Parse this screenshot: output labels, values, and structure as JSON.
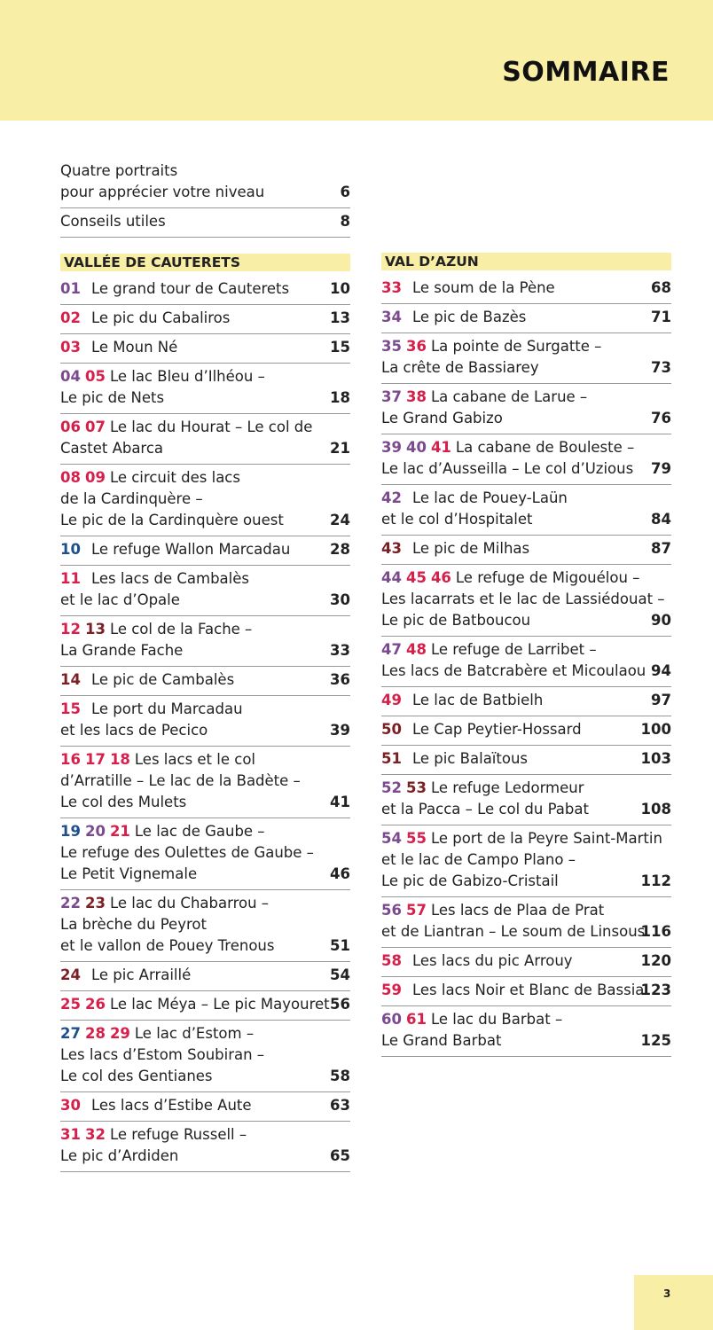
{
  "header": {
    "title": "SOMMAIRE"
  },
  "intro": [
    {
      "lines": [
        "Quatre portraits",
        "pour apprécier votre niveau"
      ],
      "page": 6
    },
    {
      "lines": [
        "Conseils utiles"
      ],
      "page": 8
    }
  ],
  "sections": [
    {
      "title": "VALLÉE DE CAUTERETS",
      "entries": [
        {
          "nums": [
            {
              "n": "01",
              "color": "#7b4a8e"
            }
          ],
          "lines": [
            "Le grand tour de Cauterets"
          ],
          "page": 10
        },
        {
          "nums": [
            {
              "n": "02",
              "color": "#d61f4b"
            }
          ],
          "lines": [
            "Le pic du Cabaliros"
          ],
          "page": 13
        },
        {
          "nums": [
            {
              "n": "03",
              "color": "#d61f4b"
            }
          ],
          "lines": [
            "Le Moun Né"
          ],
          "page": 15
        },
        {
          "nums": [
            {
              "n": "04",
              "color": "#7b4a8e"
            },
            {
              "n": "05",
              "color": "#d61f4b"
            }
          ],
          "lines": [
            "Le lac Bleu d’Ilhéou –",
            "Le pic de Nets"
          ],
          "page": 18
        },
        {
          "nums": [
            {
              "n": "06",
              "color": "#d61f4b"
            },
            {
              "n": "07",
              "color": "#d61f4b"
            }
          ],
          "lines": [
            "Le lac du Hourat – Le col de",
            "Castet Abarca"
          ],
          "page": 21
        },
        {
          "nums": [
            {
              "n": "08",
              "color": "#d61f4b"
            },
            {
              "n": "09",
              "color": "#d61f4b"
            }
          ],
          "lines": [
            "Le circuit des lacs",
            "de la Cardinquère –",
            "Le pic de la Cardinquère ouest"
          ],
          "page": 24
        },
        {
          "nums": [
            {
              "n": "10",
              "color": "#1d4f8c"
            }
          ],
          "lines": [
            "Le refuge Wallon Marcadau"
          ],
          "page": 28
        },
        {
          "nums": [
            {
              "n": "11",
              "color": "#d61f4b"
            }
          ],
          "lines": [
            "Les lacs de Cambalès",
            "et le lac d’Opale"
          ],
          "page": 30
        },
        {
          "nums": [
            {
              "n": "12",
              "color": "#d61f4b"
            },
            {
              "n": "13",
              "color": "#7a1f24"
            }
          ],
          "lines": [
            "Le col de la Fache –",
            "La Grande Fache"
          ],
          "page": 33
        },
        {
          "nums": [
            {
              "n": "14",
              "color": "#7a1f24"
            }
          ],
          "lines": [
            "Le pic de Cambalès"
          ],
          "page": 36
        },
        {
          "nums": [
            {
              "n": "15",
              "color": "#d61f4b"
            }
          ],
          "lines": [
            "Le port du Marcadau",
            "et les lacs de Pecico"
          ],
          "page": 39
        },
        {
          "nums": [
            {
              "n": "16",
              "color": "#d61f4b"
            },
            {
              "n": "17",
              "color": "#d61f4b"
            },
            {
              "n": "18",
              "color": "#d61f4b"
            }
          ],
          "lines": [
            "Les lacs et le col",
            "d’Arratille – Le lac de la Badète –",
            "Le col des Mulets"
          ],
          "page": 41
        },
        {
          "nums": [
            {
              "n": "19",
              "color": "#1d4f8c"
            },
            {
              "n": "20",
              "color": "#7b4a8e"
            },
            {
              "n": "21",
              "color": "#d61f4b"
            }
          ],
          "lines": [
            "Le lac de Gaube –",
            "Le refuge des Oulettes de Gaube –",
            "Le Petit Vignemale"
          ],
          "page": 46
        },
        {
          "nums": [
            {
              "n": "22",
              "color": "#7b4a8e"
            },
            {
              "n": "23",
              "color": "#7a1f24"
            }
          ],
          "lines": [
            "Le lac du Chabarrou –",
            "La brèche du Peyrot",
            "et le vallon de Pouey Trenous"
          ],
          "page": 51
        },
        {
          "nums": [
            {
              "n": "24",
              "color": "#7a1f24"
            }
          ],
          "lines": [
            "Le pic Arraillé"
          ],
          "page": 54
        },
        {
          "nums": [
            {
              "n": "25",
              "color": "#d61f4b"
            },
            {
              "n": "26",
              "color": "#d61f4b"
            }
          ],
          "lines": [
            "Le lac Méya – Le pic Mayouret"
          ],
          "page": 56
        },
        {
          "nums": [
            {
              "n": "27",
              "color": "#1d4f8c"
            },
            {
              "n": "28",
              "color": "#d61f4b"
            },
            {
              "n": "29",
              "color": "#d61f4b"
            }
          ],
          "lines": [
            "Le lac d’Estom –",
            "Les lacs d’Estom Soubiran –",
            "Le col des Gentianes"
          ],
          "page": 58
        },
        {
          "nums": [
            {
              "n": "30",
              "color": "#d61f4b"
            }
          ],
          "lines": [
            "Les lacs d’Estibe Aute"
          ],
          "page": 63
        },
        {
          "nums": [
            {
              "n": "31",
              "color": "#d61f4b"
            },
            {
              "n": "32",
              "color": "#d61f4b"
            }
          ],
          "lines": [
            "Le refuge Russell –",
            "Le pic d’Ardiden"
          ],
          "page": 65
        }
      ]
    },
    {
      "title": "VAL D’AZUN",
      "entries": [
        {
          "nums": [
            {
              "n": "33",
              "color": "#d61f4b"
            }
          ],
          "lines": [
            "Le soum de la Pène"
          ],
          "page": 68
        },
        {
          "nums": [
            {
              "n": "34",
              "color": "#7b4a8e"
            }
          ],
          "lines": [
            "Le pic de Bazès"
          ],
          "page": 71
        },
        {
          "nums": [
            {
              "n": "35",
              "color": "#7b4a8e"
            },
            {
              "n": "36",
              "color": "#d61f4b"
            }
          ],
          "lines": [
            "La pointe de Surgatte –",
            "La crête de Bassiarey"
          ],
          "page": 73
        },
        {
          "nums": [
            {
              "n": "37",
              "color": "#7b4a8e"
            },
            {
              "n": "38",
              "color": "#d61f4b"
            }
          ],
          "lines": [
            "La cabane de Larue –",
            "Le Grand Gabizo"
          ],
          "page": 76
        },
        {
          "nums": [
            {
              "n": "39",
              "color": "#7b4a8e"
            },
            {
              "n": "40",
              "color": "#7b4a8e"
            },
            {
              "n": "41",
              "color": "#d61f4b"
            }
          ],
          "lines": [
            "La cabane de Bouleste –",
            "Le lac d’Ausseilla – Le col d’Uzious"
          ],
          "page": 79
        },
        {
          "nums": [
            {
              "n": "42",
              "color": "#7b4a8e"
            }
          ],
          "lines": [
            "Le lac de Pouey-Laün",
            "et le col d’Hospitalet"
          ],
          "page": 84
        },
        {
          "nums": [
            {
              "n": "43",
              "color": "#7a1f24"
            }
          ],
          "lines": [
            "Le pic de Milhas"
          ],
          "page": 87
        },
        {
          "nums": [
            {
              "n": "44",
              "color": "#7b4a8e"
            },
            {
              "n": "45",
              "color": "#d61f4b"
            },
            {
              "n": "46",
              "color": "#d61f4b"
            }
          ],
          "lines": [
            "Le refuge de Migouélou –",
            "Les lacarrats et le lac de Lassiédouat –",
            "Le pic de Batboucou"
          ],
          "page": 90
        },
        {
          "nums": [
            {
              "n": "47",
              "color": "#7b4a8e"
            },
            {
              "n": "48",
              "color": "#d61f4b"
            }
          ],
          "lines": [
            "Le refuge de Larribet –",
            "Les lacs de Batcrabère et Micoulaou"
          ],
          "page": 94
        },
        {
          "nums": [
            {
              "n": "49",
              "color": "#d61f4b"
            }
          ],
          "lines": [
            "Le lac de Batbielh"
          ],
          "page": 97
        },
        {
          "nums": [
            {
              "n": "50",
              "color": "#7a1f24"
            }
          ],
          "lines": [
            "Le Cap Peytier-Hossard"
          ],
          "page": 100
        },
        {
          "nums": [
            {
              "n": "51",
              "color": "#7a1f24"
            }
          ],
          "lines": [
            "Le pic Balaïtous"
          ],
          "page": 103
        },
        {
          "nums": [
            {
              "n": "52",
              "color": "#7b4a8e"
            },
            {
              "n": "53",
              "color": "#7a1f24"
            }
          ],
          "lines": [
            "Le refuge Ledormeur",
            "et la Pacca – Le col du Pabat"
          ],
          "page": 108
        },
        {
          "nums": [
            {
              "n": "54",
              "color": "#7b4a8e"
            },
            {
              "n": "55",
              "color": "#d61f4b"
            }
          ],
          "lines": [
            "Le port de la Peyre Saint-Martin",
            "et le lac de Campo Plano –",
            "Le pic de Gabizo-Cristail"
          ],
          "page": 112
        },
        {
          "nums": [
            {
              "n": "56",
              "color": "#7b4a8e"
            },
            {
              "n": "57",
              "color": "#d61f4b"
            }
          ],
          "lines": [
            "Les lacs de Plaa de Prat",
            "et de Liantran – Le soum de Linsous"
          ],
          "page": 116
        },
        {
          "nums": [
            {
              "n": "58",
              "color": "#d61f4b"
            }
          ],
          "lines": [
            "Les lacs du pic Arrouy"
          ],
          "page": 120
        },
        {
          "nums": [
            {
              "n": "59",
              "color": "#d61f4b"
            }
          ],
          "lines": [
            "Les lacs Noir et Blanc de Bassia"
          ],
          "page": 123
        },
        {
          "nums": [
            {
              "n": "60",
              "color": "#7b4a8e"
            },
            {
              "n": "61",
              "color": "#d61f4b"
            }
          ],
          "lines": [
            "Le lac du Barbat –",
            "Le Grand Barbat"
          ],
          "page": 125
        }
      ]
    }
  ],
  "footer": {
    "page": 3
  }
}
